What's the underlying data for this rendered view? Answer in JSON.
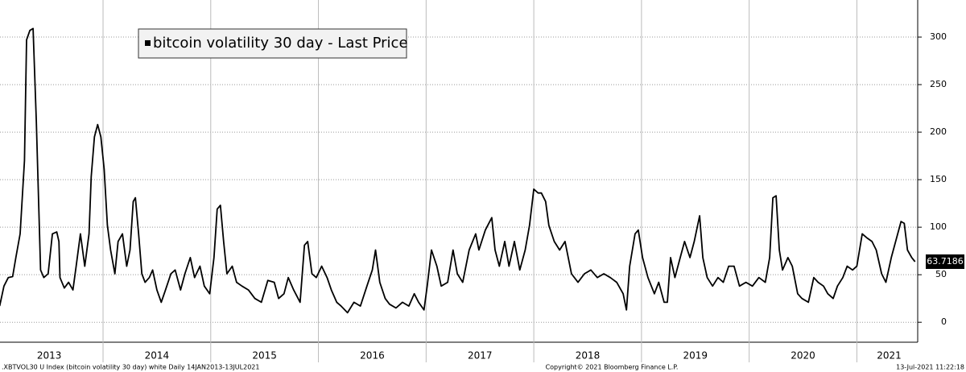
{
  "chart_data": {
    "type": "line",
    "series": [
      {
        "name": "bitcoin volatility 30 day - Last Price",
        "color": "#000000",
        "x": [
          2013.04,
          2013.08,
          2013.12,
          2013.16,
          2013.19,
          2013.23,
          2013.27,
          2013.29,
          2013.32,
          2013.35,
          2013.38,
          2013.42,
          2013.45,
          2013.49,
          2013.53,
          2013.57,
          2013.59,
          2013.6,
          2013.64,
          2013.68,
          2013.72,
          2013.75,
          2013.79,
          2013.83,
          2013.87,
          2013.89,
          2013.92,
          2013.95,
          2013.98,
          2014.01,
          2014.04,
          2014.07,
          2014.11,
          2014.14,
          2014.18,
          2014.22,
          2014.25,
          2014.28,
          2014.3,
          2014.33,
          2014.36,
          2014.39,
          2014.43,
          2014.46,
          2014.5,
          2014.54,
          2014.58,
          2014.63,
          2014.67,
          2014.72,
          2014.76,
          2014.81,
          2014.85,
          2014.9,
          2014.94,
          2014.99,
          2015.03,
          2015.06,
          2015.09,
          2015.12,
          2015.15,
          2015.2,
          2015.24,
          2015.29,
          2015.35,
          2015.41,
          2015.47,
          2015.53,
          2015.59,
          2015.63,
          2015.68,
          2015.72,
          2015.77,
          2015.83,
          2015.87,
          2015.9,
          2015.94,
          2015.98,
          2016.03,
          2016.08,
          2016.12,
          2016.17,
          2016.21,
          2016.27,
          2016.33,
          2016.39,
          2016.45,
          2016.5,
          2016.53,
          2016.57,
          2016.62,
          2016.66,
          2016.72,
          2016.78,
          2016.84,
          2016.89,
          2016.93,
          2016.98,
          2017.01,
          2017.05,
          2017.1,
          2017.14,
          2017.2,
          2017.25,
          2017.29,
          2017.34,
          2017.4,
          2017.46,
          2017.49,
          2017.55,
          2017.61,
          2017.64,
          2017.68,
          2017.73,
          2017.77,
          2017.82,
          2017.87,
          2017.92,
          2017.96,
          2018.0,
          2018.04,
          2018.07,
          2018.11,
          2018.14,
          2018.19,
          2018.24,
          2018.29,
          2018.35,
          2018.41,
          2018.47,
          2018.53,
          2018.59,
          2018.65,
          2018.71,
          2018.77,
          2018.83,
          2018.86,
          2018.89,
          2018.94,
          2018.97,
          2019.01,
          2019.06,
          2019.12,
          2019.16,
          2019.21,
          2019.24,
          2019.27,
          2019.31,
          2019.36,
          2019.4,
          2019.45,
          2019.49,
          2019.54,
          2019.57,
          2019.61,
          2019.66,
          2019.71,
          2019.76,
          2019.81,
          2019.86,
          2019.91,
          2019.97,
          2020.03,
          2020.09,
          2020.15,
          2020.19,
          2020.22,
          2020.25,
          2020.28,
          2020.31,
          2020.36,
          2020.4,
          2020.45,
          2020.49,
          2020.55,
          2020.6,
          2020.64,
          2020.69,
          2020.73,
          2020.78,
          2020.82,
          2020.87,
          2020.91,
          2020.96,
          2021.0,
          2021.05,
          2021.09,
          2021.14,
          2021.18,
          2021.23,
          2021.27,
          2021.32,
          2021.36,
          2021.41,
          2021.44,
          2021.47,
          2021.51,
          2021.54
        ],
        "values": [
          17,
          38,
          47,
          48,
          68,
          93,
          170,
          297,
          307,
          309,
          212,
          55,
          47,
          51,
          93,
          95,
          85,
          47,
          36,
          42,
          34,
          59,
          93,
          59,
          93,
          153,
          195,
          208,
          195,
          161,
          102,
          76,
          51,
          85,
          93,
          59,
          76,
          127,
          131,
          93,
          51,
          42,
          47,
          55,
          34,
          21,
          34,
          51,
          55,
          34,
          51,
          68,
          47,
          59,
          38,
          30,
          68,
          119,
          123,
          85,
          51,
          59,
          42,
          38,
          34,
          25,
          21,
          44,
          42,
          25,
          30,
          47,
          34,
          21,
          81,
          85,
          51,
          47,
          59,
          47,
          34,
          21,
          17,
          10,
          21,
          17,
          38,
          55,
          76,
          42,
          25,
          19,
          15,
          21,
          17,
          30,
          21,
          13,
          38,
          76,
          59,
          38,
          42,
          76,
          51,
          42,
          76,
          93,
          76,
          97,
          110,
          76,
          59,
          85,
          59,
          85,
          55,
          76,
          102,
          140,
          136,
          136,
          127,
          102,
          85,
          76,
          85,
          51,
          42,
          51,
          55,
          47,
          51,
          47,
          42,
          30,
          13,
          59,
          93,
          97,
          68,
          47,
          30,
          42,
          21,
          21,
          68,
          47,
          68,
          85,
          68,
          85,
          112,
          68,
          47,
          38,
          47,
          42,
          59,
          59,
          38,
          42,
          38,
          47,
          42,
          68,
          131,
          133,
          76,
          55,
          68,
          59,
          30,
          25,
          21,
          47,
          42,
          38,
          30,
          25,
          38,
          47,
          59,
          55,
          59,
          93,
          89,
          85,
          76,
          51,
          42,
          68,
          85,
          106,
          104,
          76,
          68,
          63.7186
        ]
      }
    ],
    "xlim": [
      2013.043,
      2021.55
    ],
    "xticks": [
      {
        "value": 2013.5,
        "label": "2013"
      },
      {
        "value": 2014.5,
        "label": "2014"
      },
      {
        "value": 2015.5,
        "label": "2015"
      },
      {
        "value": 2016.5,
        "label": "2016"
      },
      {
        "value": 2017.5,
        "label": "2017"
      },
      {
        "value": 2018.5,
        "label": "2018"
      },
      {
        "value": 2019.5,
        "label": "2019"
      },
      {
        "value": 2020.5,
        "label": "2020"
      },
      {
        "value": 2021.3,
        "label": "2021"
      }
    ],
    "year_boundaries": [
      2014,
      2015,
      2016,
      2017,
      2018,
      2019,
      2020,
      2021
    ],
    "ylim": [
      -21,
      339
    ],
    "yticks": [
      0,
      50,
      100,
      150,
      200,
      250,
      300
    ],
    "grid": true,
    "footer_left": ".XBTVOL30 U Index (bitcoin volatility 30 day) white  Daily 14JAN2013-13JUL2021",
    "footer_center": "Copyright© 2021 Bloomberg Finance L.P.",
    "footer_right": "13-Jul-2021 11:22:18"
  }
}
